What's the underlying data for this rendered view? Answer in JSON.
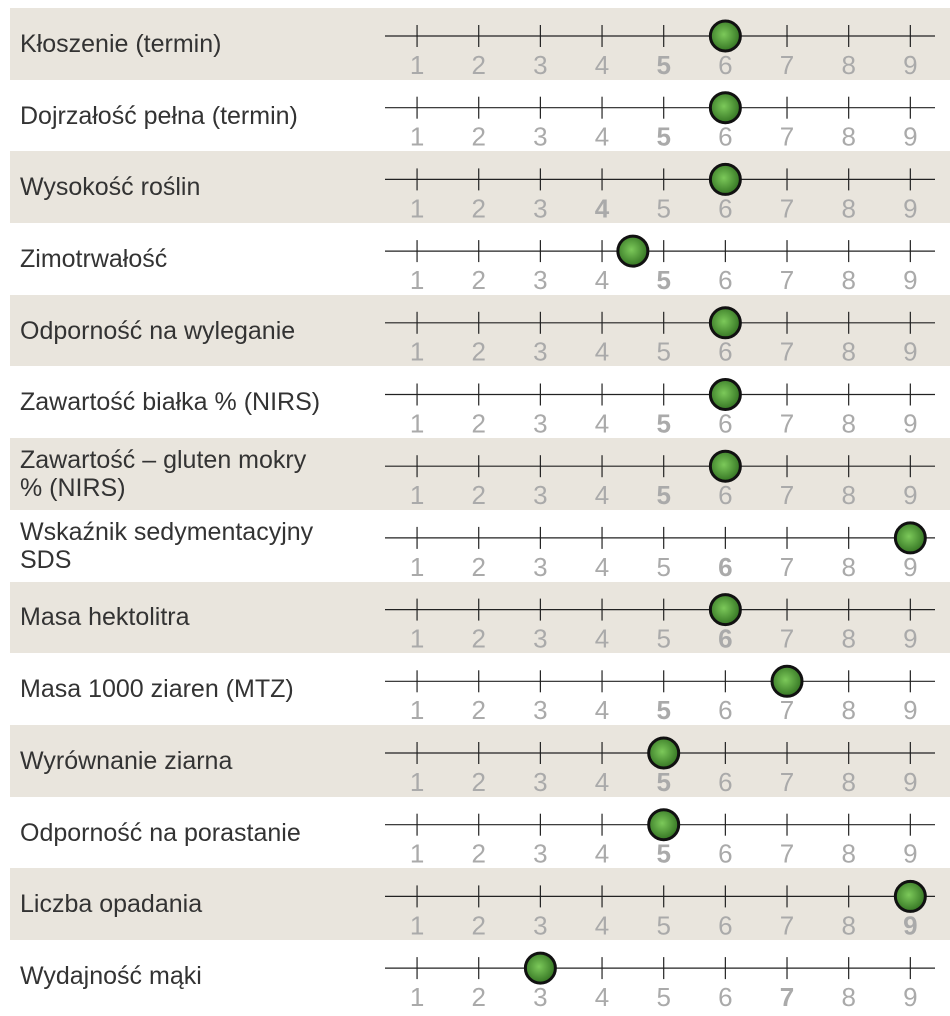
{
  "chart_data": {
    "type": "dot",
    "categories": [
      "Kłoszenie (termin)",
      "Dojrzałość pełna (termin)",
      "Wysokość roślin",
      "Zimotrwałość",
      "Odporność na wyleganie",
      "Zawartość białka % (NIRS)",
      "Zawartość – gluten mokry\n% (NIRS)",
      "Wskaźnik sedymentacyjny\nSDS",
      "Masa hektolitra",
      "Masa 1000 ziaren (MTZ)",
      "Wyrównanie ziarna",
      "Odporność na porastanie",
      "Liczba opadania",
      "Wydajność mąki"
    ],
    "values": [
      6,
      6,
      6,
      4.5,
      6,
      6,
      6,
      9,
      6,
      7,
      5,
      5,
      9,
      3
    ],
    "bold_ticks": [
      5,
      5,
      4,
      5,
      null,
      5,
      5,
      6,
      6,
      5,
      5,
      5,
      9,
      7
    ],
    "xlim": [
      0.48,
      9.4
    ],
    "xticks": [
      1,
      2,
      3,
      4,
      5,
      6,
      7,
      8,
      9
    ],
    "color": "#3f8a2c",
    "row_colors": [
      "#e9e5dd",
      "#ffffff"
    ]
  }
}
